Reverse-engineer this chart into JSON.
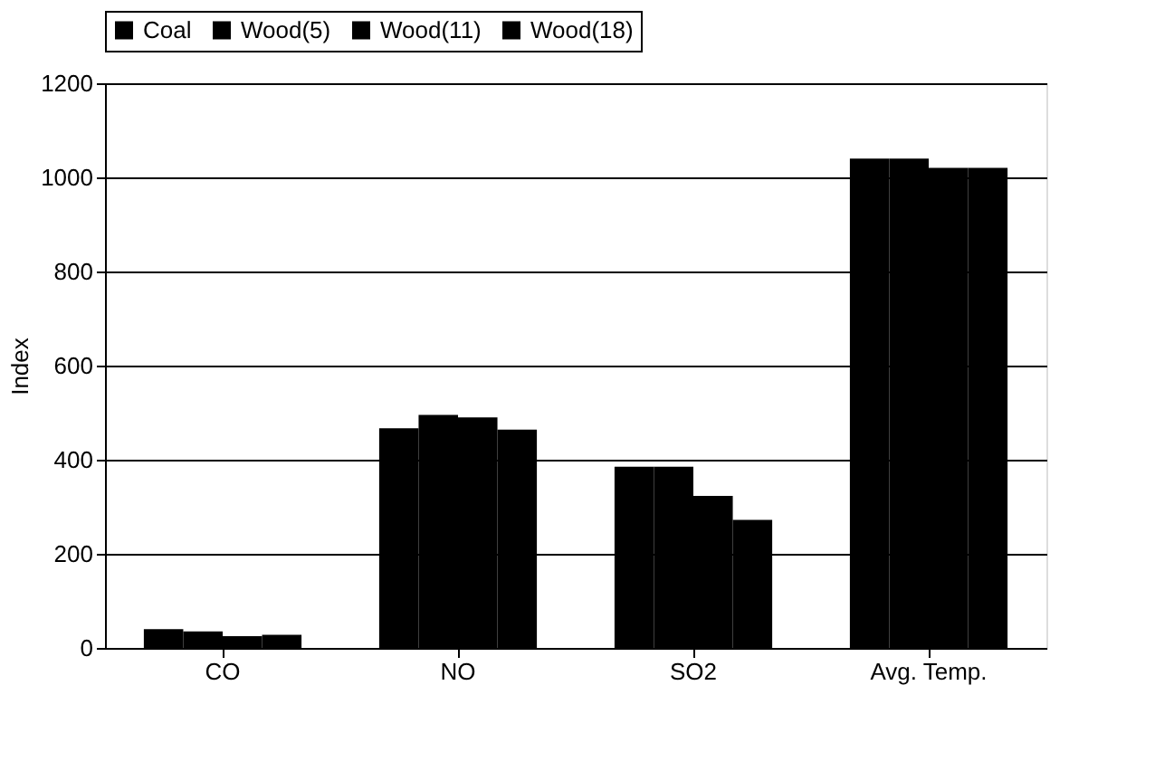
{
  "chart_data": {
    "type": "bar",
    "ylabel": "Index",
    "categories": [
      "CO",
      "NO",
      "SO2",
      "Avg. Temp."
    ],
    "series": [
      {
        "name": "Coal",
        "color": "#000000",
        "values": [
          40,
          467,
          385,
          1040
        ]
      },
      {
        "name": "Wood(5)",
        "color": "#000000",
        "values": [
          35,
          495,
          385,
          1040
        ]
      },
      {
        "name": "Wood(11)",
        "color": "#000000",
        "values": [
          25,
          490,
          323,
          1020
        ]
      },
      {
        "name": "Wood(18)",
        "color": "#000000",
        "values": [
          28,
          464,
          272,
          1020
        ]
      }
    ],
    "ylim": [
      0,
      1200
    ],
    "yticks": [
      0,
      200,
      400,
      600,
      800,
      1000,
      1200
    ],
    "grid": "y",
    "legend": "top"
  }
}
